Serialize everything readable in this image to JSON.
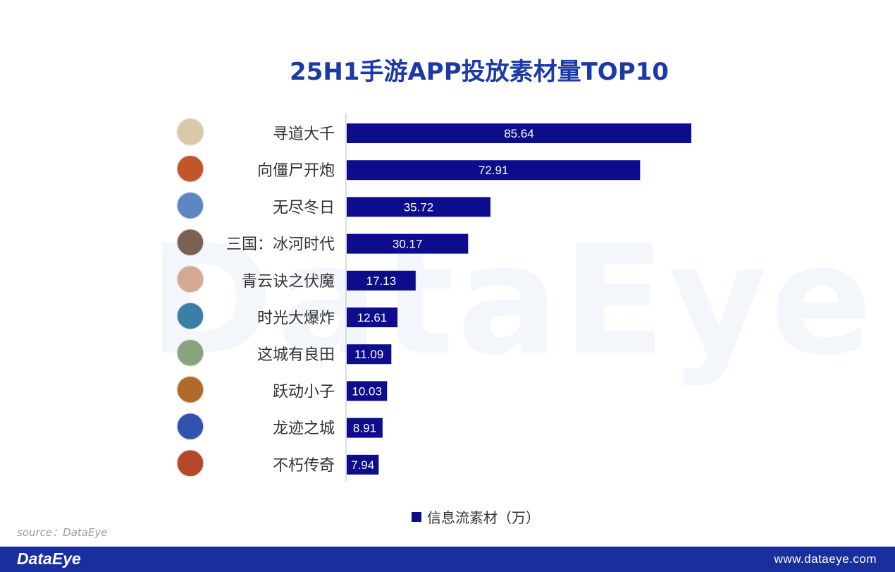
{
  "watermark": "DataEye",
  "header": {
    "title": "25H1手游APP投放素材量TOP10"
  },
  "chart_data": {
    "type": "bar",
    "orientation": "horizontal",
    "title": "25H1手游APP投放素材量TOP10",
    "categories": [
      "寻道大千",
      "向僵尸开炮",
      "无尽冬日",
      "三国：冰河时代",
      "青云诀之伏魔",
      "时光大爆炸",
      "这城有良田",
      "跃动小子",
      "龙迹之城",
      "不朽传奇"
    ],
    "series": [
      {
        "name": "信息流素材（万）",
        "values": [
          85.64,
          72.91,
          35.72,
          30.17,
          17.13,
          12.61,
          11.09,
          10.03,
          8.91,
          7.94
        ]
      }
    ],
    "data_labels": [
      "85.64",
      "72.91",
      "35.72",
      "30.17",
      "17.13",
      "12.61",
      "11.09",
      "10.03",
      "8.91",
      "7.94"
    ],
    "xlim": [
      0,
      85.64
    ],
    "grid": false,
    "legend_position": "bottom",
    "bar_color": "#0c0c8c",
    "icon_colors": [
      "#d9c9a6",
      "#c0562a",
      "#5d86c2",
      "#7a6152",
      "#d4a894",
      "#3a7fa8",
      "#88a47c",
      "#b06b2a",
      "#3252b0",
      "#b5482a"
    ]
  },
  "source": "source：DataEye",
  "footer": {
    "logo": "DataEye",
    "url": "www.dataeye.com"
  },
  "colors": {
    "title": "#1c3aa6",
    "bar": "#0c0c8c",
    "footer_bg": "#1a2f9e",
    "label_text": "#333333"
  }
}
